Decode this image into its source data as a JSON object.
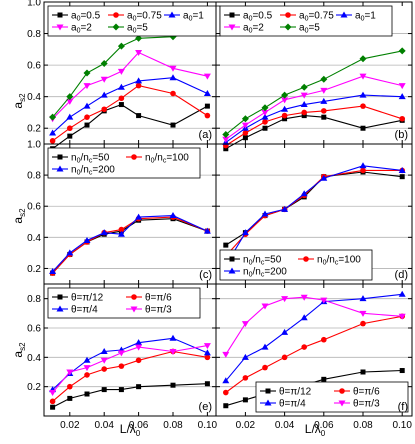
{
  "figure": {
    "ylabel_main": "a",
    "ylabel_sub": "s2",
    "xlabel_main": "L/λ",
    "xlabel_sub": "0",
    "x_ticks": [
      "0.02",
      "0.04",
      "0.06",
      "0.08",
      "0.10"
    ]
  },
  "chart_data": [
    {
      "panel": "a",
      "type": "line",
      "ylim": [
        0.1,
        1.0
      ],
      "y_ticks": [
        "0.2",
        "0.4",
        "0.6",
        "0.8",
        "1.0"
      ],
      "xlim": [
        0.005,
        0.105
      ],
      "x": [
        0.01,
        0.02,
        0.03,
        0.04,
        0.05,
        0.06,
        0.08,
        0.1
      ],
      "series": [
        {
          "name_main": "a",
          "name_sub": "0",
          "name_suffix": "=0.5",
          "marker": "square",
          "color": "#000000",
          "values": [
            0.07,
            0.15,
            0.22,
            0.31,
            0.35,
            0.28,
            0.22,
            0.34
          ]
        },
        {
          "name_main": "a",
          "name_sub": "0",
          "name_suffix": "=0.75",
          "marker": "circle",
          "color": "#ff0000",
          "values": [
            0.12,
            0.2,
            0.27,
            0.32,
            0.39,
            0.47,
            0.42,
            0.28
          ]
        },
        {
          "name_main": "a",
          "name_sub": "0",
          "name_suffix": "=1",
          "marker": "triangle-up",
          "color": "#0000ff",
          "values": [
            0.17,
            0.27,
            0.34,
            0.41,
            0.46,
            0.5,
            0.52,
            0.42
          ]
        },
        {
          "name_main": "a",
          "name_sub": "0",
          "name_suffix": "=2",
          "marker": "triangle-down",
          "color": "#ff00ff",
          "values": [
            0.26,
            0.37,
            0.47,
            0.51,
            0.56,
            0.68,
            0.58,
            0.53
          ]
        },
        {
          "name_main": "a",
          "name_sub": "0",
          "name_suffix": "=5",
          "marker": "diamond",
          "color": "#008000",
          "values": [
            0.27,
            0.4,
            0.55,
            0.61,
            0.72,
            0.77,
            0.78,
            0.83
          ]
        }
      ],
      "legend_cols": 3,
      "legend_pos": "top-left",
      "tag": "(a)"
    },
    {
      "panel": "b",
      "type": "line",
      "ylim": [
        0.1,
        1.0
      ],
      "y_ticks": [
        "0.2",
        "0.4",
        "0.6",
        "0.8",
        "1.0"
      ],
      "xlim": [
        0.005,
        0.105
      ],
      "x": [
        0.01,
        0.02,
        0.03,
        0.04,
        0.05,
        0.06,
        0.08,
        0.1
      ],
      "series": [
        {
          "name_main": "a",
          "name_sub": "0",
          "name_suffix": "=0.5",
          "marker": "square",
          "color": "#000000",
          "values": [
            0.07,
            0.14,
            0.2,
            0.26,
            0.28,
            0.27,
            0.2,
            0.25
          ]
        },
        {
          "name_main": "a",
          "name_sub": "0",
          "name_suffix": "=0.75",
          "marker": "circle",
          "color": "#ff0000",
          "values": [
            0.09,
            0.17,
            0.24,
            0.28,
            0.3,
            0.31,
            0.34,
            0.26
          ]
        },
        {
          "name_main": "a",
          "name_sub": "0",
          "name_suffix": "=1",
          "marker": "triangle-up",
          "color": "#0000ff",
          "values": [
            0.11,
            0.2,
            0.27,
            0.32,
            0.35,
            0.37,
            0.41,
            0.4
          ]
        },
        {
          "name_main": "a",
          "name_sub": "0",
          "name_suffix": "=2",
          "marker": "triangle-down",
          "color": "#ff00ff",
          "values": [
            0.13,
            0.22,
            0.3,
            0.38,
            0.41,
            0.44,
            0.53,
            0.47
          ]
        },
        {
          "name_main": "a",
          "name_sub": "0",
          "name_suffix": "=5",
          "marker": "diamond",
          "color": "#008000",
          "values": [
            0.16,
            0.26,
            0.33,
            0.41,
            0.46,
            0.51,
            0.64,
            0.69
          ]
        }
      ],
      "legend_cols": 3,
      "legend_pos": "top-left",
      "tag": "(b)"
    },
    {
      "panel": "c",
      "type": "line",
      "ylim": [
        0.1,
        1.0
      ],
      "y_ticks": [
        "0.2",
        "0.4",
        "0.6",
        "0.8",
        "1.0"
      ],
      "xlim": [
        0.005,
        0.105
      ],
      "x": [
        0.01,
        0.02,
        0.03,
        0.04,
        0.05,
        0.06,
        0.08,
        0.1
      ],
      "series": [
        {
          "name_main": "n",
          "name_sub": "0",
          "name_suffix": "/n",
          "name_sub2": "c",
          "name_suffix2": "=50",
          "marker": "square",
          "color": "#000000",
          "values": [
            0.17,
            0.29,
            0.37,
            0.42,
            0.44,
            0.51,
            0.52,
            0.44
          ]
        },
        {
          "name_main": "n",
          "name_sub": "0",
          "name_suffix": "/n",
          "name_sub2": "c",
          "name_suffix2": "=100",
          "marker": "circle",
          "color": "#ff0000",
          "values": [
            0.17,
            0.29,
            0.37,
            0.43,
            0.45,
            0.52,
            0.53,
            0.44
          ]
        },
        {
          "name_main": "n",
          "name_sub": "0",
          "name_suffix": "/n",
          "name_sub2": "c",
          "name_suffix2": "=200",
          "marker": "triangle-up",
          "color": "#0000ff",
          "values": [
            0.18,
            0.3,
            0.38,
            0.43,
            0.42,
            0.53,
            0.54,
            0.44
          ]
        }
      ],
      "legend_cols": 2,
      "legend_pos": "top-left",
      "tag": "(c)"
    },
    {
      "panel": "d",
      "type": "line",
      "ylim": [
        0.1,
        1.0
      ],
      "y_ticks": [
        "0.2",
        "0.4",
        "0.6",
        "0.8",
        "1.0"
      ],
      "xlim": [
        0.005,
        0.105
      ],
      "x": [
        0.01,
        0.02,
        0.03,
        0.04,
        0.05,
        0.06,
        0.08,
        0.1
      ],
      "series": [
        {
          "name_main": "n",
          "name_sub": "0",
          "name_suffix": "/n",
          "name_sub2": "c",
          "name_suffix2": "=50",
          "marker": "square",
          "color": "#000000",
          "values": [
            0.35,
            0.43,
            0.54,
            0.58,
            0.66,
            0.79,
            0.82,
            0.79
          ]
        },
        {
          "name_main": "n",
          "name_sub": "0",
          "name_suffix": "/n",
          "name_sub2": "c",
          "name_suffix2": "=100",
          "marker": "circle",
          "color": "#ff0000",
          "values": [
            0.28,
            0.42,
            0.54,
            0.58,
            0.67,
            0.79,
            0.83,
            0.83
          ]
        },
        {
          "name_main": "n",
          "name_sub": "0",
          "name_suffix": "/n",
          "name_sub2": "c",
          "name_suffix2": "=200",
          "marker": "triangle-up",
          "color": "#0000ff",
          "values": [
            0.22,
            0.43,
            0.55,
            0.58,
            0.68,
            0.78,
            0.86,
            0.83
          ]
        }
      ],
      "legend_cols": 2,
      "legend_pos": "bottom-left",
      "tag": "(d)"
    },
    {
      "panel": "e",
      "type": "line",
      "ylim": [
        0.0,
        0.9
      ],
      "y_ticks": [
        "0.2",
        "0.4",
        "0.6",
        "0.8"
      ],
      "xlim": [
        0.005,
        0.105
      ],
      "x": [
        0.01,
        0.02,
        0.03,
        0.04,
        0.05,
        0.06,
        0.08,
        0.1
      ],
      "series": [
        {
          "name_main": "θ=π/12",
          "marker": "square",
          "color": "#000000",
          "values": [
            0.06,
            0.12,
            0.15,
            0.18,
            0.18,
            0.2,
            0.21,
            0.22
          ]
        },
        {
          "name_main": "θ=π/6",
          "marker": "circle",
          "color": "#ff0000",
          "values": [
            0.1,
            0.2,
            0.28,
            0.32,
            0.34,
            0.38,
            0.44,
            0.4
          ]
        },
        {
          "name_main": "θ=π/4",
          "marker": "triangle-up",
          "color": "#0000ff",
          "values": [
            0.18,
            0.29,
            0.38,
            0.44,
            0.45,
            0.5,
            0.53,
            0.43
          ]
        },
        {
          "name_main": "θ=π/3",
          "marker": "triangle-down",
          "color": "#ff00ff",
          "values": [
            0.16,
            0.3,
            0.33,
            0.38,
            0.43,
            0.47,
            0.44,
            0.48
          ]
        }
      ],
      "legend_cols": 2,
      "legend_pos": "top-left",
      "tag": "(e)"
    },
    {
      "panel": "f",
      "type": "line",
      "ylim": [
        0.0,
        0.9
      ],
      "y_ticks": [
        "0.2",
        "0.4",
        "0.6",
        "0.8"
      ],
      "xlim": [
        0.005,
        0.105
      ],
      "x": [
        0.01,
        0.02,
        0.03,
        0.04,
        0.05,
        0.06,
        0.08,
        0.1
      ],
      "series": [
        {
          "name_main": "θ=π/12",
          "marker": "square",
          "color": "#000000",
          "values": [
            0.07,
            0.11,
            0.15,
            0.18,
            0.21,
            0.25,
            0.3,
            0.31
          ]
        },
        {
          "name_main": "θ=π/6",
          "marker": "circle",
          "color": "#ff0000",
          "values": [
            0.16,
            0.26,
            0.33,
            0.4,
            0.47,
            0.52,
            0.63,
            0.68
          ]
        },
        {
          "name_main": "θ=π/4",
          "marker": "triangle-up",
          "color": "#0000ff",
          "values": [
            0.24,
            0.4,
            0.47,
            0.57,
            0.67,
            0.78,
            0.8,
            0.83
          ]
        },
        {
          "name_main": "θ=π/3",
          "marker": "triangle-down",
          "color": "#ff00ff",
          "values": [
            0.42,
            0.63,
            0.75,
            0.8,
            0.81,
            0.79,
            0.7,
            0.68
          ]
        }
      ],
      "legend_cols": 2,
      "legend_pos": "bottom-right",
      "tag": "(f)"
    }
  ]
}
